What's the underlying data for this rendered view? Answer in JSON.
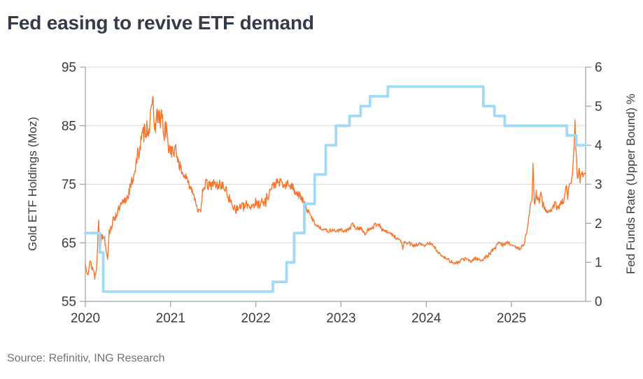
{
  "chart_data": {
    "type": "line",
    "title": "Fed easing to revive ETF demand",
    "source": "Source: Refinitiv, ING Research",
    "x_axis": {
      "range": [
        2020,
        2025.87
      ],
      "ticks": [
        2020,
        2021,
        2022,
        2023,
        2024,
        2025
      ]
    },
    "left_axis": {
      "label": "Gold ETF Holdings (Moz)",
      "range": [
        55,
        95
      ],
      "ticks": [
        55,
        65,
        75,
        85,
        95
      ]
    },
    "right_axis": {
      "label": "Fed Funds Rate (Upper Bound) %",
      "range": [
        0,
        6
      ],
      "ticks": [
        0,
        1,
        2,
        3,
        4,
        5,
        6
      ]
    },
    "gridlines": {
      "left_values": [
        65,
        75,
        85
      ],
      "top_border": true
    },
    "colors": {
      "grid": "#d9d9d9",
      "axis": "#9f9f9f",
      "title_text": "#333c48",
      "tick_text": "#3c3c3c",
      "source_text": "#6f7278",
      "gold_etf": "#f8752c",
      "fed_funds": "#a4d9f6"
    },
    "legend": "none",
    "series": [
      {
        "name": "Gold ETF Holdings (Moz)",
        "axis": "left",
        "color": "#f8752c",
        "width": 1.4,
        "noise_seed": 13,
        "points": [
          [
            2020.0,
            61.2,
            0.9
          ],
          [
            2020.03,
            60.3,
            0.8
          ],
          [
            2020.06,
            61.5,
            0.9
          ],
          [
            2020.09,
            60.6,
            0.8
          ],
          [
            2020.11,
            59.2,
            0.6
          ],
          [
            2020.13,
            60.2,
            1.0
          ],
          [
            2020.155,
            68.9,
            0.15
          ],
          [
            2020.17,
            64.2,
            0.7
          ],
          [
            2020.19,
            65.8,
            0.8
          ],
          [
            2020.22,
            66.3,
            0.8
          ],
          [
            2020.26,
            62.4,
            0.3
          ],
          [
            2020.28,
            66.8,
            0.6
          ],
          [
            2020.31,
            68.0,
            0.7
          ],
          [
            2020.34,
            69.3,
            0.7
          ],
          [
            2020.38,
            70.3,
            0.8
          ],
          [
            2020.42,
            71.3,
            0.9
          ],
          [
            2020.46,
            72.0,
            1.0
          ],
          [
            2020.5,
            73.2,
            0.9
          ],
          [
            2020.54,
            75.0,
            1.0
          ],
          [
            2020.57,
            76.8,
            1.2
          ],
          [
            2020.61,
            79.5,
            1.4
          ],
          [
            2020.645,
            81.8,
            1.5
          ],
          [
            2020.68,
            83.5,
            1.6
          ],
          [
            2020.71,
            84.8,
            1.8
          ],
          [
            2020.74,
            84.6,
            2.0
          ],
          [
            2020.77,
            86.3,
            1.8
          ],
          [
            2020.795,
            90.3,
            0.3
          ],
          [
            2020.81,
            83.8,
            1.6
          ],
          [
            2020.84,
            87.0,
            1.7
          ],
          [
            2020.87,
            85.5,
            2.2
          ],
          [
            2020.9,
            87.0,
            1.8
          ],
          [
            2020.92,
            83.0,
            2.0
          ],
          [
            2020.95,
            84.5,
            2.0
          ],
          [
            2020.97,
            81.5,
            1.3
          ],
          [
            2021.0,
            81.0,
            1.2
          ],
          [
            2021.03,
            80.3,
            1.2
          ],
          [
            2021.06,
            80.8,
            1.1
          ],
          [
            2021.1,
            78.5,
            1.0
          ],
          [
            2021.14,
            76.8,
            0.7
          ],
          [
            2021.18,
            76.2,
            0.6
          ],
          [
            2021.22,
            74.8,
            0.6
          ],
          [
            2021.26,
            73.9,
            0.6
          ],
          [
            2021.3,
            71.8,
            0.7
          ],
          [
            2021.33,
            70.3,
            0.7
          ],
          [
            2021.355,
            69.9,
            0.5
          ],
          [
            2021.375,
            74.4,
            0.8
          ],
          [
            2021.42,
            75.1,
            0.9
          ],
          [
            2021.46,
            74.6,
            0.9
          ],
          [
            2021.5,
            75.2,
            0.9
          ],
          [
            2021.54,
            74.7,
            0.9
          ],
          [
            2021.58,
            75.0,
            0.8
          ],
          [
            2021.62,
            74.6,
            0.8
          ],
          [
            2021.66,
            73.6,
            0.9
          ],
          [
            2021.7,
            72.0,
            0.9
          ],
          [
            2021.74,
            71.3,
            0.8
          ],
          [
            2021.78,
            70.6,
            0.8
          ],
          [
            2021.82,
            71.4,
            0.9
          ],
          [
            2021.86,
            71.0,
            0.8
          ],
          [
            2021.9,
            71.6,
            0.8
          ],
          [
            2021.94,
            71.2,
            0.8
          ],
          [
            2021.98,
            71.8,
            1.0
          ],
          [
            2022.02,
            71.5,
            1.0
          ],
          [
            2022.06,
            72.1,
            0.9
          ],
          [
            2022.1,
            71.6,
            1.1
          ],
          [
            2022.14,
            73.0,
            0.9
          ],
          [
            2022.18,
            74.3,
            0.9
          ],
          [
            2022.22,
            75.0,
            0.8
          ],
          [
            2022.26,
            75.3,
            0.8
          ],
          [
            2022.3,
            75.3,
            0.7
          ],
          [
            2022.34,
            74.6,
            0.8
          ],
          [
            2022.38,
            75.1,
            0.7
          ],
          [
            2022.42,
            74.6,
            0.7
          ],
          [
            2022.46,
            74.0,
            0.8
          ],
          [
            2022.5,
            73.3,
            0.8
          ],
          [
            2022.54,
            72.5,
            0.7
          ],
          [
            2022.58,
            71.3,
            0.6
          ],
          [
            2022.62,
            70.2,
            0.5
          ],
          [
            2022.66,
            69.2,
            0.4
          ],
          [
            2022.7,
            68.2,
            0.35
          ],
          [
            2022.75,
            67.6,
            0.3
          ],
          [
            2022.8,
            67.3,
            0.3
          ],
          [
            2022.85,
            67.0,
            0.3
          ],
          [
            2022.9,
            67.2,
            0.3
          ],
          [
            2022.95,
            67.0,
            0.3
          ],
          [
            2023.0,
            67.2,
            0.3
          ],
          [
            2023.05,
            67.0,
            0.3
          ],
          [
            2023.1,
            67.4,
            0.4
          ],
          [
            2023.14,
            68.2,
            0.4
          ],
          [
            2023.18,
            67.4,
            0.35
          ],
          [
            2023.24,
            67.6,
            0.4
          ],
          [
            2023.28,
            66.2,
            0.5
          ],
          [
            2023.32,
            67.4,
            0.4
          ],
          [
            2023.38,
            67.8,
            0.45
          ],
          [
            2023.43,
            68.4,
            0.45
          ],
          [
            2023.48,
            67.3,
            0.35
          ],
          [
            2023.54,
            66.8,
            0.3
          ],
          [
            2023.6,
            66.4,
            0.3
          ],
          [
            2023.66,
            65.7,
            0.35
          ],
          [
            2023.71,
            65.2,
            0.3
          ],
          [
            2023.725,
            63.9,
            0.1
          ],
          [
            2023.74,
            65.1,
            0.3
          ],
          [
            2023.8,
            64.9,
            0.3
          ],
          [
            2023.86,
            64.5,
            0.3
          ],
          [
            2023.92,
            64.8,
            0.3
          ],
          [
            2023.98,
            64.4,
            0.3
          ],
          [
            2024.04,
            65.1,
            0.35
          ],
          [
            2024.1,
            64.1,
            0.3
          ],
          [
            2024.16,
            63.1,
            0.3
          ],
          [
            2024.22,
            62.5,
            0.3
          ],
          [
            2024.28,
            61.9,
            0.3
          ],
          [
            2024.34,
            61.4,
            0.3
          ],
          [
            2024.4,
            61.9,
            0.3
          ],
          [
            2024.46,
            62.3,
            0.3
          ],
          [
            2024.52,
            61.8,
            0.3
          ],
          [
            2024.58,
            62.4,
            0.3
          ],
          [
            2024.64,
            62.0,
            0.3
          ],
          [
            2024.7,
            62.5,
            0.3
          ],
          [
            2024.76,
            63.4,
            0.4
          ],
          [
            2024.82,
            64.4,
            0.4
          ],
          [
            2024.86,
            65.2,
            0.4
          ],
          [
            2024.9,
            64.6,
            0.3
          ],
          [
            2024.95,
            65.0,
            0.3
          ],
          [
            2025.0,
            64.8,
            0.3
          ],
          [
            2025.05,
            64.1,
            0.3
          ],
          [
            2025.1,
            64.1,
            0.35
          ],
          [
            2025.13,
            64.3,
            0.4
          ],
          [
            2025.16,
            65.5,
            0.5
          ],
          [
            2025.19,
            68.0,
            0.6
          ],
          [
            2025.22,
            71.0,
            0.6
          ],
          [
            2025.24,
            72.3,
            0.5
          ],
          [
            2025.253,
            78.6,
            0.1
          ],
          [
            2025.268,
            71.8,
            0.6
          ],
          [
            2025.29,
            73.4,
            0.8
          ],
          [
            2025.32,
            72.0,
            0.9
          ],
          [
            2025.345,
            74.0,
            0.6
          ],
          [
            2025.365,
            71.5,
            0.7
          ],
          [
            2025.4,
            70.5,
            0.5
          ],
          [
            2025.44,
            70.2,
            0.4
          ],
          [
            2025.48,
            70.8,
            0.5
          ],
          [
            2025.51,
            71.5,
            0.6
          ],
          [
            2025.55,
            71.0,
            0.6
          ],
          [
            2025.59,
            71.9,
            0.7
          ],
          [
            2025.62,
            72.2,
            0.6
          ],
          [
            2025.645,
            74.9,
            0.4
          ],
          [
            2025.66,
            73.0,
            0.6
          ],
          [
            2025.68,
            74.5,
            0.6
          ],
          [
            2025.7,
            75.8,
            0.8
          ],
          [
            2025.72,
            78.0,
            0.8
          ],
          [
            2025.735,
            82.0,
            0.5
          ],
          [
            2025.745,
            86.0,
            0.1
          ],
          [
            2025.76,
            79.5,
            1.0
          ],
          [
            2025.775,
            76.2,
            0.8
          ],
          [
            2025.79,
            77.8,
            0.7
          ],
          [
            2025.805,
            75.9,
            0.7
          ],
          [
            2025.825,
            77.2,
            0.7
          ],
          [
            2025.845,
            76.3,
            0.6
          ],
          [
            2025.87,
            76.9,
            0.3
          ]
        ]
      },
      {
        "name": "Fed Funds Rate (Upper Bound) %",
        "axis": "right",
        "color": "#a4d9f6",
        "width": 3.8,
        "step": true,
        "points": [
          [
            2020.0,
            1.75
          ],
          [
            2020.17,
            1.25
          ],
          [
            2020.21,
            0.25
          ],
          [
            2022.2,
            0.5
          ],
          [
            2022.36,
            1.0
          ],
          [
            2022.45,
            1.75
          ],
          [
            2022.57,
            2.5
          ],
          [
            2022.69,
            3.25
          ],
          [
            2022.82,
            4.0
          ],
          [
            2022.94,
            4.5
          ],
          [
            2023.1,
            4.75
          ],
          [
            2023.23,
            5.0
          ],
          [
            2023.34,
            5.25
          ],
          [
            2023.55,
            5.5
          ],
          [
            2024.67,
            5.0
          ],
          [
            2024.8,
            4.75
          ],
          [
            2024.92,
            4.5
          ],
          [
            2025.65,
            4.25
          ],
          [
            2025.76,
            4.0
          ],
          [
            2025.87,
            4.0
          ]
        ]
      }
    ]
  }
}
